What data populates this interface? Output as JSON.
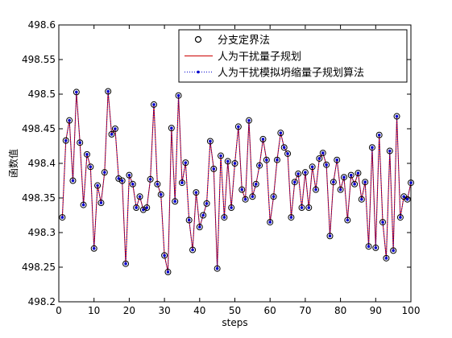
{
  "chart_data": {
    "type": "line",
    "title": "",
    "xlabel": "steps",
    "ylabel": "函数值",
    "xlim": [
      0,
      100
    ],
    "ylim": [
      498.2,
      498.6
    ],
    "x_ticks": [
      "0",
      "10",
      "20",
      "30",
      "40",
      "50",
      "60",
      "70",
      "80",
      "90",
      "100"
    ],
    "y_ticks": [
      "498.2",
      "498.25",
      "498.3",
      "498.35",
      "498.4",
      "498.45",
      "498.5",
      "498.55",
      "498.6"
    ],
    "legend_position": "top-right",
    "grid": false,
    "x": [
      1,
      2,
      3,
      4,
      5,
      6,
      7,
      8,
      9,
      10,
      11,
      12,
      13,
      14,
      15,
      16,
      17,
      18,
      19,
      20,
      21,
      22,
      23,
      24,
      25,
      26,
      27,
      28,
      29,
      30,
      31,
      32,
      33,
      34,
      35,
      36,
      37,
      38,
      39,
      40,
      41,
      42,
      43,
      44,
      45,
      46,
      47,
      48,
      49,
      50,
      51,
      52,
      53,
      54,
      55,
      56,
      57,
      58,
      59,
      60,
      61,
      62,
      63,
      64,
      65,
      66,
      67,
      68,
      69,
      70,
      71,
      72,
      73,
      74,
      75,
      76,
      77,
      78,
      79,
      80,
      81,
      82,
      83,
      84,
      85,
      86,
      87,
      88,
      89,
      90,
      91,
      92,
      93,
      94,
      95,
      96,
      97,
      98,
      99,
      100
    ],
    "values": [
      498.322,
      498.433,
      498.462,
      498.375,
      498.503,
      498.43,
      498.34,
      498.413,
      498.395,
      498.277,
      498.368,
      498.343,
      498.387,
      498.504,
      498.442,
      498.45,
      498.378,
      498.375,
      498.255,
      498.383,
      498.37,
      498.336,
      498.352,
      498.333,
      498.336,
      498.377,
      498.485,
      498.37,
      498.355,
      498.267,
      498.243,
      498.451,
      498.345,
      498.498,
      498.372,
      498.401,
      498.318,
      498.275,
      498.358,
      498.308,
      498.325,
      498.342,
      498.432,
      498.392,
      498.248,
      498.411,
      498.322,
      498.403,
      498.336,
      498.4,
      498.453,
      498.362,
      498.348,
      498.462,
      498.352,
      498.37,
      498.397,
      498.435,
      498.405,
      498.315,
      498.352,
      498.405,
      498.444,
      498.423,
      498.414,
      498.322,
      498.373,
      498.385,
      498.336,
      498.387,
      498.336,
      498.395,
      498.362,
      498.407,
      498.415,
      498.398,
      498.295,
      498.373,
      498.405,
      498.362,
      498.38,
      498.318,
      498.383,
      498.37,
      498.386,
      498.348,
      498.373,
      498.28,
      498.423,
      498.278,
      498.441,
      498.315,
      498.263,
      498.418,
      498.274,
      498.468,
      498.322,
      498.352,
      498.348,
      498.372
    ],
    "series": [
      {
        "name": "分支定界法",
        "style": "circle-markers",
        "color": "#000000"
      },
      {
        "name": "人为干扰量子规划",
        "style": "line",
        "color": "#cc0000"
      },
      {
        "name": "人为干扰模拟坍缩量子规划算法",
        "style": "dotted-line-with-dot-markers",
        "color": "#0000cc"
      }
    ]
  }
}
